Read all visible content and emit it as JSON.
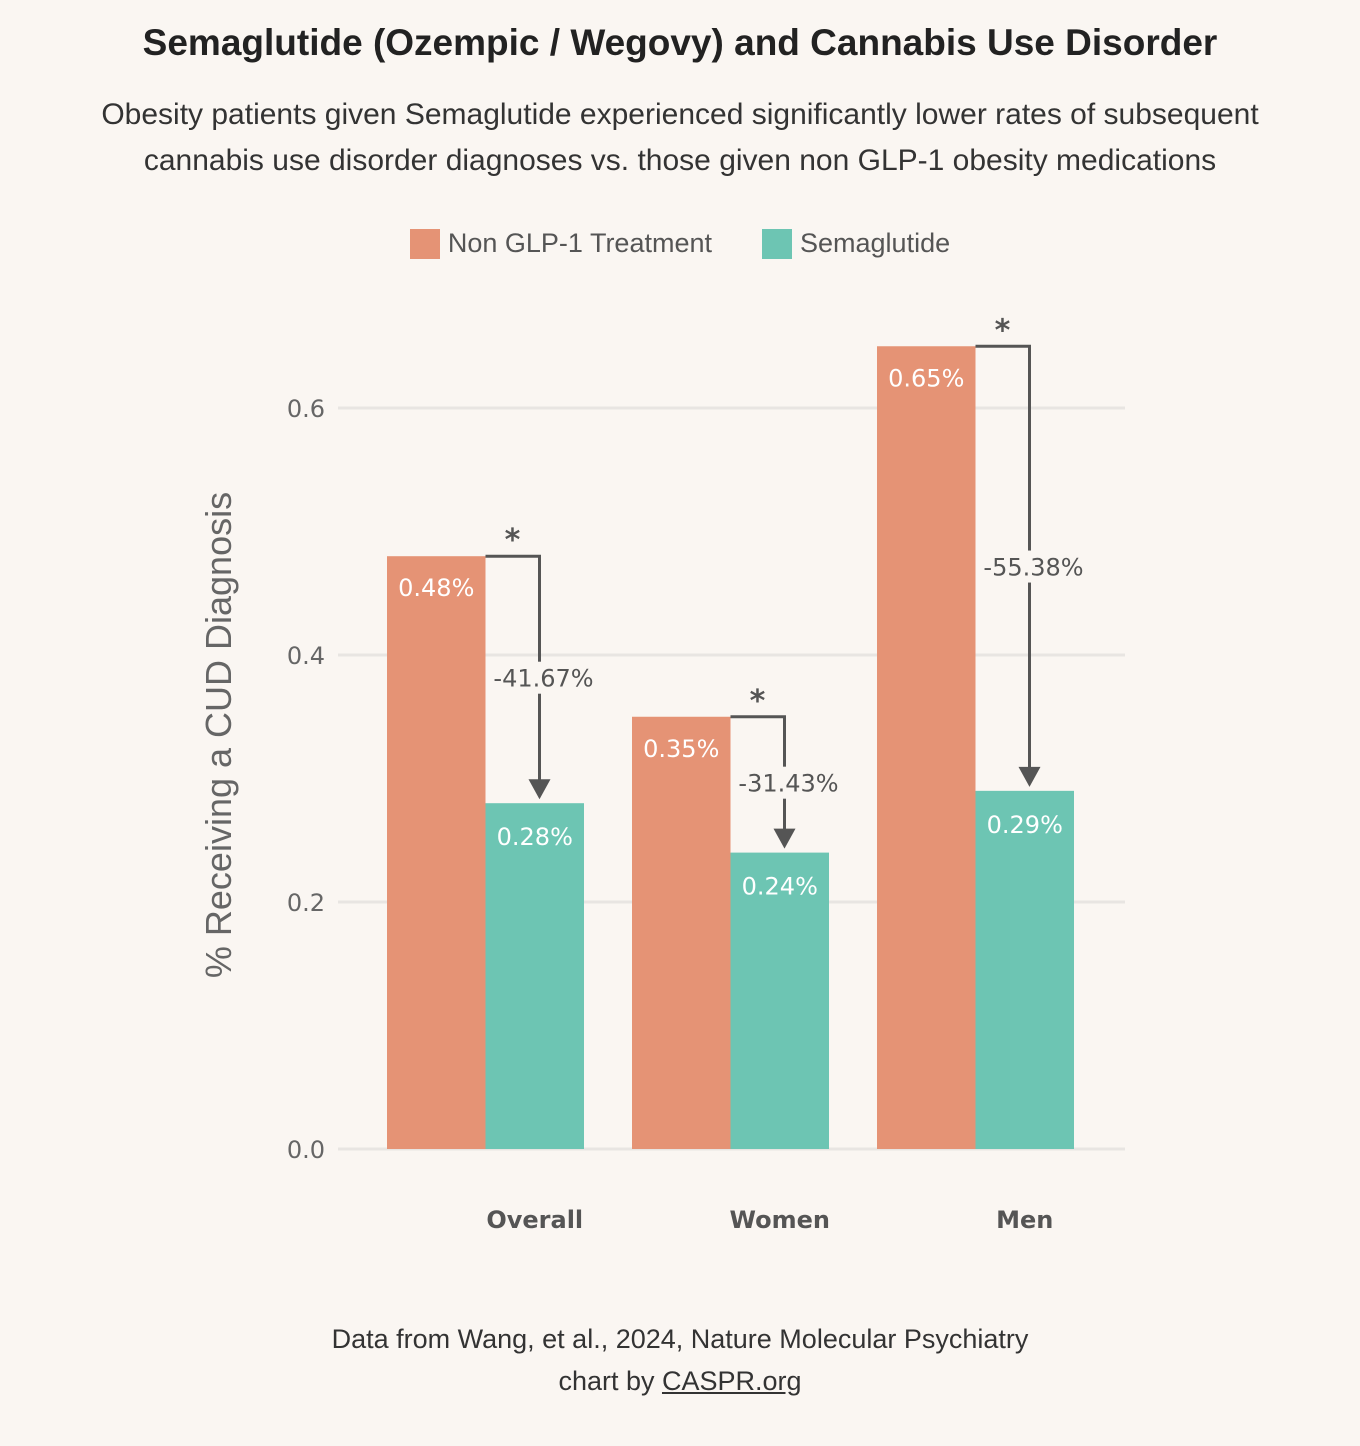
{
  "title": "Semaglutide (Ozempic / Wegovy) and Cannabis Use Disorder",
  "subtitle_line1": "Obesity patients given Semaglutide experienced significantly lower rates of subsequent",
  "subtitle_line2": "cannabis use disorder diagnoses vs. those given non GLP-1 obesity medications",
  "footer": {
    "source": "Data from Wang, et al., 2024, Nature Molecular Psychiatry",
    "credit_prefix": "chart by ",
    "credit_link": "CASPR.org"
  },
  "chart_data": {
    "type": "bar",
    "categories": [
      "Overall",
      "Women",
      "Men"
    ],
    "series": [
      {
        "name": "Non GLP-1 Treatment",
        "values": [
          0.48,
          0.35,
          0.65
        ],
        "labels": [
          "0.48%",
          "0.35%",
          "0.65%"
        ],
        "color": "#E59375"
      },
      {
        "name": "Semaglutide",
        "values": [
          0.28,
          0.24,
          0.29
        ],
        "labels": [
          "0.28%",
          "0.24%",
          "0.29%"
        ],
        "color": "#6DC5B3"
      }
    ],
    "changes": [
      "-41.67%",
      "-31.43%",
      "-55.38%"
    ],
    "significance_marker": "*",
    "ylabel": "%  Receiving a CUD Diagnosis",
    "xlabel": "",
    "ylim": [
      0,
      0.7
    ],
    "yticks": [
      "0.0",
      "0.2",
      "0.4",
      "0.6"
    ],
    "ytick_values": [
      0,
      0.2,
      0.4,
      0.6
    ],
    "grid": true,
    "legend_position": "top"
  }
}
